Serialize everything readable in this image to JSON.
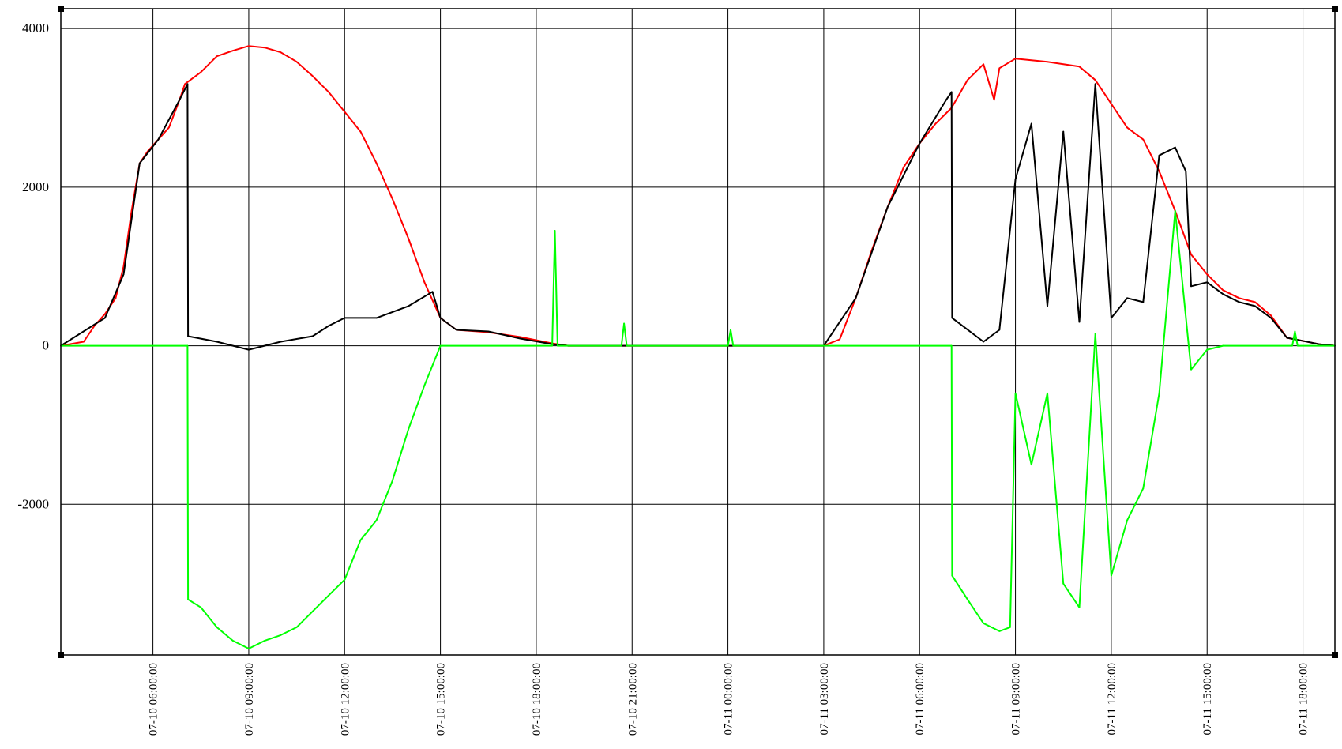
{
  "chart_data": {
    "type": "line",
    "title": "",
    "xlabel": "",
    "ylabel": "",
    "ylim": [
      -3900,
      4250
    ],
    "y_ticks": [
      4000,
      2000,
      0,
      -2000
    ],
    "y_tick_labels": [
      "4000",
      "2000",
      "0",
      "-2000"
    ],
    "x_range": [
      "2024-07-10 03:07",
      "2024-07-11 19:00"
    ],
    "x_ticks": [
      {
        "t": "2024-07-10 06:00",
        "label": "07-10 06:00:00"
      },
      {
        "t": "2024-07-10 09:00",
        "label": "07-10 09:00:00"
      },
      {
        "t": "2024-07-10 12:00",
        "label": "07-10 12:00:00"
      },
      {
        "t": "2024-07-10 15:00",
        "label": "07-10 15:00:00"
      },
      {
        "t": "2024-07-10 18:00",
        "label": "07-10 18:00:00"
      },
      {
        "t": "2024-07-10 21:00",
        "label": "07-10 21:00:00"
      },
      {
        "t": "2024-07-11 00:00",
        "label": "07-11 00:00:00"
      },
      {
        "t": "2024-07-11 03:00",
        "label": "07-11 03:00:00"
      },
      {
        "t": "2024-07-11 06:00",
        "label": "07-11 06:00:00"
      },
      {
        "t": "2024-07-11 09:00",
        "label": "07-11 09:00:00"
      },
      {
        "t": "2024-07-11 12:00",
        "label": "07-11 12:00:00"
      },
      {
        "t": "2024-07-11 15:00",
        "label": "07-11 15:00:00"
      },
      {
        "t": "2024-07-11 18:00",
        "label": "07-11 18:00:00"
      }
    ],
    "grid": true,
    "legend": "none",
    "series": [
      {
        "color": "#ff0000",
        "points": [
          [
            "2024-07-10 03:07",
            0
          ],
          [
            "2024-07-10 03:50",
            50
          ],
          [
            "2024-07-10 04:10",
            250
          ],
          [
            "2024-07-10 04:30",
            400
          ],
          [
            "2024-07-10 04:50",
            600
          ],
          [
            "2024-07-10 05:05",
            1000
          ],
          [
            "2024-07-10 05:20",
            1700
          ],
          [
            "2024-07-10 05:35",
            2300
          ],
          [
            "2024-07-10 05:50",
            2450
          ],
          [
            "2024-07-10 06:10",
            2600
          ],
          [
            "2024-07-10 06:30",
            2750
          ],
          [
            "2024-07-10 06:50",
            3100
          ],
          [
            "2024-07-10 07:00",
            3300
          ],
          [
            "2024-07-10 07:30",
            3450
          ],
          [
            "2024-07-10 08:00",
            3650
          ],
          [
            "2024-07-10 08:30",
            3720
          ],
          [
            "2024-07-10 09:00",
            3780
          ],
          [
            "2024-07-10 09:30",
            3760
          ],
          [
            "2024-07-10 10:00",
            3700
          ],
          [
            "2024-07-10 10:30",
            3580
          ],
          [
            "2024-07-10 11:00",
            3400
          ],
          [
            "2024-07-10 11:30",
            3200
          ],
          [
            "2024-07-10 12:00",
            2950
          ],
          [
            "2024-07-10 12:30",
            2700
          ],
          [
            "2024-07-10 13:00",
            2300
          ],
          [
            "2024-07-10 13:30",
            1850
          ],
          [
            "2024-07-10 14:00",
            1350
          ],
          [
            "2024-07-10 14:30",
            800
          ],
          [
            "2024-07-10 15:00",
            350
          ],
          [
            "2024-07-10 15:30",
            200
          ],
          [
            "2024-07-10 16:30",
            170
          ],
          [
            "2024-07-10 17:30",
            110
          ],
          [
            "2024-07-10 18:30",
            30
          ],
          [
            "2024-07-10 19:00",
            0
          ],
          [
            "2024-07-11 03:00",
            0
          ],
          [
            "2024-07-11 03:30",
            80
          ],
          [
            "2024-07-11 04:00",
            600
          ],
          [
            "2024-07-11 04:30",
            1200
          ],
          [
            "2024-07-11 05:00",
            1750
          ],
          [
            "2024-07-11 05:30",
            2250
          ],
          [
            "2024-07-11 06:00",
            2550
          ],
          [
            "2024-07-11 06:30",
            2800
          ],
          [
            "2024-07-11 07:00",
            3000
          ],
          [
            "2024-07-11 07:30",
            3350
          ],
          [
            "2024-07-11 08:00",
            3550
          ],
          [
            "2024-07-11 08:20",
            3100
          ],
          [
            "2024-07-11 08:30",
            3500
          ],
          [
            "2024-07-11 09:00",
            3620
          ],
          [
            "2024-07-11 10:00",
            3580
          ],
          [
            "2024-07-11 11:00",
            3520
          ],
          [
            "2024-07-11 11:30",
            3350
          ],
          [
            "2024-07-11 12:00",
            3050
          ],
          [
            "2024-07-11 12:30",
            2750
          ],
          [
            "2024-07-11 13:00",
            2600
          ],
          [
            "2024-07-11 13:30",
            2200
          ],
          [
            "2024-07-11 14:00",
            1700
          ],
          [
            "2024-07-11 14:30",
            1150
          ],
          [
            "2024-07-11 15:00",
            900
          ],
          [
            "2024-07-11 15:30",
            700
          ],
          [
            "2024-07-11 16:00",
            600
          ],
          [
            "2024-07-11 16:30",
            550
          ],
          [
            "2024-07-11 17:00",
            380
          ],
          [
            "2024-07-11 17:30",
            100
          ],
          [
            "2024-07-11 18:00",
            60
          ],
          [
            "2024-07-11 18:30",
            20
          ],
          [
            "2024-07-11 19:00",
            0
          ]
        ]
      },
      {
        "color": "#000000",
        "points": [
          [
            "2024-07-10 03:07",
            0
          ],
          [
            "2024-07-10 04:30",
            350
          ],
          [
            "2024-07-10 05:05",
            900
          ],
          [
            "2024-07-10 05:35",
            2300
          ],
          [
            "2024-07-10 06:10",
            2600
          ],
          [
            "2024-07-10 06:50",
            3100
          ],
          [
            "2024-07-10 07:05",
            3300
          ],
          [
            "2024-07-10 07:06",
            120
          ],
          [
            "2024-07-10 08:00",
            50
          ],
          [
            "2024-07-10 09:00",
            -50
          ],
          [
            "2024-07-10 10:00",
            50
          ],
          [
            "2024-07-10 11:00",
            120
          ],
          [
            "2024-07-10 11:30",
            250
          ],
          [
            "2024-07-10 12:00",
            350
          ],
          [
            "2024-07-10 13:00",
            350
          ],
          [
            "2024-07-10 14:00",
            500
          ],
          [
            "2024-07-10 14:45",
            680
          ],
          [
            "2024-07-10 15:00",
            350
          ],
          [
            "2024-07-10 15:30",
            200
          ],
          [
            "2024-07-10 16:30",
            180
          ],
          [
            "2024-07-10 17:30",
            90
          ],
          [
            "2024-07-10 18:30",
            20
          ],
          [
            "2024-07-10 19:00",
            0
          ],
          [
            "2024-07-11 03:00",
            0
          ],
          [
            "2024-07-11 04:00",
            600
          ],
          [
            "2024-07-11 05:00",
            1750
          ],
          [
            "2024-07-11 06:00",
            2550
          ],
          [
            "2024-07-11 06:50",
            3100
          ],
          [
            "2024-07-11 07:00",
            3200
          ],
          [
            "2024-07-11 07:01",
            350
          ],
          [
            "2024-07-11 08:00",
            50
          ],
          [
            "2024-07-11 08:30",
            200
          ],
          [
            "2024-07-11 09:00",
            2100
          ],
          [
            "2024-07-11 09:30",
            2800
          ],
          [
            "2024-07-11 10:00",
            500
          ],
          [
            "2024-07-11 10:30",
            2700
          ],
          [
            "2024-07-11 11:00",
            300
          ],
          [
            "2024-07-11 11:30",
            3300
          ],
          [
            "2024-07-11 12:00",
            350
          ],
          [
            "2024-07-11 12:30",
            600
          ],
          [
            "2024-07-11 13:00",
            550
          ],
          [
            "2024-07-11 13:30",
            2400
          ],
          [
            "2024-07-11 14:00",
            2500
          ],
          [
            "2024-07-11 14:20",
            2200
          ],
          [
            "2024-07-11 14:30",
            750
          ],
          [
            "2024-07-11 15:00",
            800
          ],
          [
            "2024-07-11 15:30",
            650
          ],
          [
            "2024-07-11 16:00",
            550
          ],
          [
            "2024-07-11 16:30",
            500
          ],
          [
            "2024-07-11 17:00",
            350
          ],
          [
            "2024-07-11 17:30",
            100
          ],
          [
            "2024-07-11 18:00",
            60
          ],
          [
            "2024-07-11 18:30",
            20
          ],
          [
            "2024-07-11 19:00",
            0
          ]
        ]
      },
      {
        "color": "#00ff00",
        "points": [
          [
            "2024-07-10 03:07",
            0
          ],
          [
            "2024-07-10 07:05",
            0
          ],
          [
            "2024-07-10 07:06",
            -3200
          ],
          [
            "2024-07-10 07:30",
            -3300
          ],
          [
            "2024-07-10 08:00",
            -3550
          ],
          [
            "2024-07-10 08:30",
            -3720
          ],
          [
            "2024-07-10 09:00",
            -3820
          ],
          [
            "2024-07-10 09:30",
            -3720
          ],
          [
            "2024-07-10 10:00",
            -3650
          ],
          [
            "2024-07-10 10:30",
            -3550
          ],
          [
            "2024-07-10 11:00",
            -3350
          ],
          [
            "2024-07-10 11:30",
            -3150
          ],
          [
            "2024-07-10 12:00",
            -2950
          ],
          [
            "2024-07-10 12:30",
            -2450
          ],
          [
            "2024-07-10 13:00",
            -2200
          ],
          [
            "2024-07-10 13:30",
            -1700
          ],
          [
            "2024-07-10 14:00",
            -1050
          ],
          [
            "2024-07-10 14:30",
            -500
          ],
          [
            "2024-07-10 15:00",
            0
          ],
          [
            "2024-07-10 18:30",
            0
          ],
          [
            "2024-07-10 18:35",
            1450
          ],
          [
            "2024-07-10 18:40",
            0
          ],
          [
            "2024-07-10 20:40",
            0
          ],
          [
            "2024-07-10 20:45",
            280
          ],
          [
            "2024-07-10 20:50",
            0
          ],
          [
            "2024-07-11 00:00",
            0
          ],
          [
            "2024-07-11 00:05",
            200
          ],
          [
            "2024-07-11 00:10",
            0
          ],
          [
            "2024-07-11 06:00",
            0
          ],
          [
            "2024-07-11 07:00",
            0
          ],
          [
            "2024-07-11 07:01",
            -2900
          ],
          [
            "2024-07-11 07:30",
            -3200
          ],
          [
            "2024-07-11 08:00",
            -3500
          ],
          [
            "2024-07-11 08:30",
            -3600
          ],
          [
            "2024-07-11 08:50",
            -3550
          ],
          [
            "2024-07-11 09:00",
            -600
          ],
          [
            "2024-07-11 09:30",
            -1500
          ],
          [
            "2024-07-11 10:00",
            -600
          ],
          [
            "2024-07-11 10:30",
            -3000
          ],
          [
            "2024-07-11 11:00",
            -3300
          ],
          [
            "2024-07-11 11:30",
            150
          ],
          [
            "2024-07-11 12:00",
            -2900
          ],
          [
            "2024-07-11 12:30",
            -2200
          ],
          [
            "2024-07-11 13:00",
            -1800
          ],
          [
            "2024-07-11 13:30",
            -600
          ],
          [
            "2024-07-11 14:00",
            1700
          ],
          [
            "2024-07-11 14:30",
            -300
          ],
          [
            "2024-07-11 15:00",
            -50
          ],
          [
            "2024-07-11 15:30",
            0
          ],
          [
            "2024-07-11 17:40",
            0
          ],
          [
            "2024-07-11 17:45",
            180
          ],
          [
            "2024-07-11 17:50",
            0
          ],
          [
            "2024-07-11 19:00",
            0
          ]
        ]
      }
    ]
  }
}
